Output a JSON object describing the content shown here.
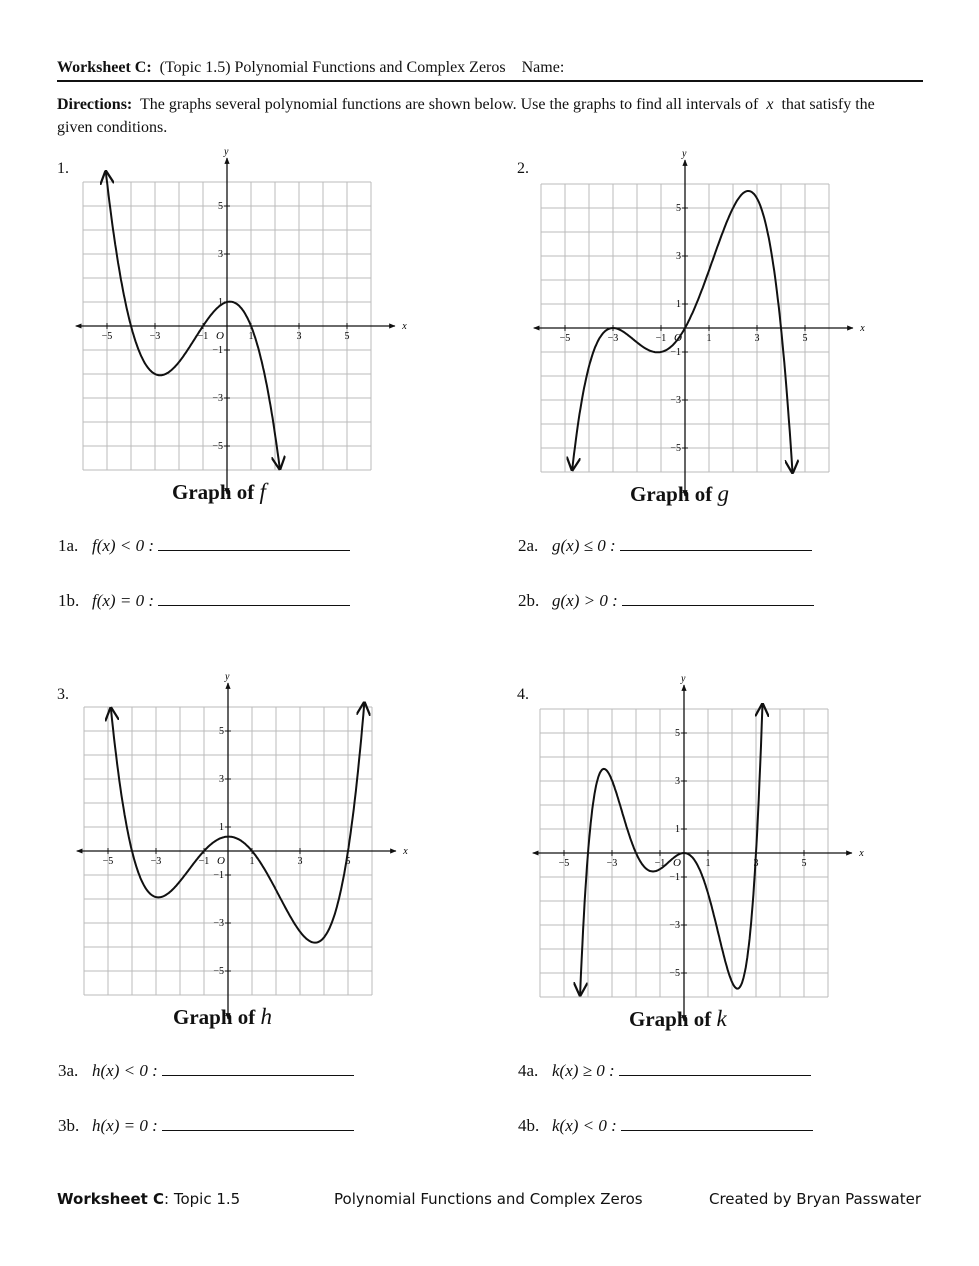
{
  "header": {
    "title_bold": "Worksheet C:",
    "title": "(Topic 1.5)  Polynomial Functions and Complex Zeros",
    "name": "Name:"
  },
  "directions": {
    "label": "Directions:",
    "text_before": "The graphs several polynomial functions are shown below.  Use the graphs to find all intervals of",
    "variable": "x",
    "text_after": "that satisfy the given conditions."
  },
  "axis_labels": {
    "x": "x",
    "y": "y",
    "origin": "O",
    "x_ticks": [
      "−5",
      "−3",
      "−1",
      "1",
      "3",
      "5"
    ],
    "y_ticks": [
      "5",
      "3",
      "1",
      "−1",
      "−3",
      "−5"
    ]
  },
  "problems": [
    {
      "number": "1.",
      "caption": "Graph of",
      "function": "f",
      "questions": [
        {
          "label": "1a.",
          "expression": "f(x) < 0 :"
        },
        {
          "label": "1b.",
          "expression": "f(x) = 0 :"
        }
      ]
    },
    {
      "number": "2.",
      "caption": "Graph of",
      "function": "g",
      "questions": [
        {
          "label": "2a.",
          "expression": "g(x) ≤ 0 :"
        },
        {
          "label": "2b.",
          "expression": "g(x) > 0 :"
        }
      ]
    },
    {
      "number": "3.",
      "caption": "Graph of",
      "function": "h",
      "questions": [
        {
          "label": "3a.",
          "expression": "h(x) < 0 :"
        },
        {
          "label": "3b.",
          "expression": "h(x) = 0 :"
        }
      ]
    },
    {
      "number": "4.",
      "caption": "Graph of",
      "function": "k",
      "questions": [
        {
          "label": "4a.",
          "expression": "k(x) ≥ 0 :"
        },
        {
          "label": "4b.",
          "expression": "k(x) < 0 :"
        }
      ]
    }
  ],
  "footer": {
    "left_bold": "Worksheet C",
    "left": ": Topic 1.5",
    "center": "Polynomial Functions and Complex Zeros",
    "right": "Created by Bryan Passwater"
  }
}
